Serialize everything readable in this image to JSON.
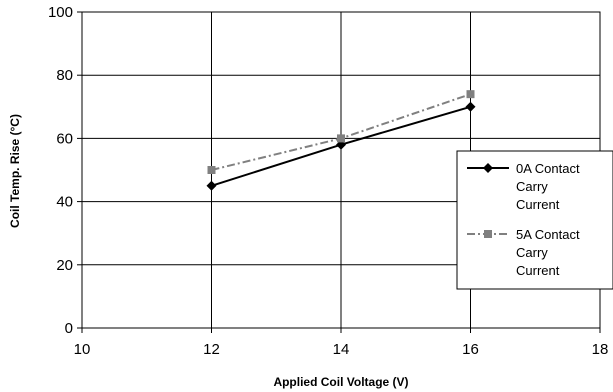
{
  "chart_data": {
    "type": "line",
    "title": "",
    "xlabel": "Applied Coil Voltage (V)",
    "ylabel": "Coil Temp. Rise (°C)",
    "xlim": [
      10,
      18
    ],
    "ylim": [
      0,
      100
    ],
    "x_ticks": [
      10,
      12,
      14,
      16,
      18
    ],
    "y_ticks": [
      0,
      20,
      40,
      60,
      80,
      100
    ],
    "grid": true,
    "legend_position": "right",
    "series": [
      {
        "name": "0A Contact Carry Current",
        "legend_lines": [
          "0A Contact",
          "Carry",
          "Current"
        ],
        "x": [
          12,
          14,
          16
        ],
        "y": [
          45,
          58,
          70
        ],
        "color": "#000000",
        "line_style": "solid",
        "marker": "diamond"
      },
      {
        "name": "5A Contact Carry Current",
        "legend_lines": [
          "5A Contact",
          "Carry",
          "Current"
        ],
        "x": [
          12,
          14,
          16
        ],
        "y": [
          50,
          60,
          74
        ],
        "color": "#808080",
        "line_style": "dash-dot",
        "marker": "square"
      }
    ]
  }
}
